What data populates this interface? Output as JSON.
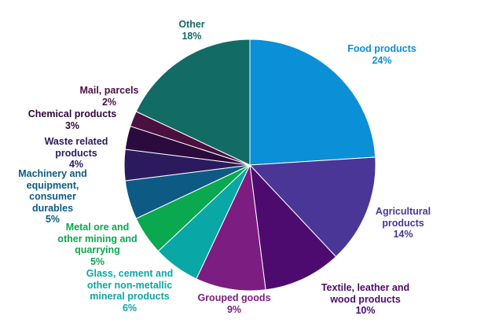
{
  "chart_data": {
    "type": "pie",
    "start": "top",
    "direction": "clockwise",
    "slices": [
      {
        "label": "Food products",
        "display_label": "Food products",
        "value": 24,
        "value_label": "24%",
        "color": "#0b8fd6",
        "label_color": "#0b8fd6"
      },
      {
        "label": "Agricultural products",
        "display_label": "Agricultural\nproducts",
        "value": 14,
        "value_label": "14%",
        "color": "#4a3696",
        "label_color": "#4a3696"
      },
      {
        "label": "Textile, leather and wood products",
        "display_label": "Textile, leather and\nwood products",
        "value": 10,
        "value_label": "10%",
        "color": "#4d0b6f",
        "label_color": "#4d0b6f"
      },
      {
        "label": "Grouped goods",
        "display_label": "Grouped goods",
        "value": 9,
        "value_label": "9%",
        "color": "#7c1d81",
        "label_color": "#7c1d81"
      },
      {
        "label": "Glass, cement and other non-metallic mineral products",
        "display_label": "Glass, cement and\nother non-metallic\nmineral products",
        "value": 6,
        "value_label": "6%",
        "color": "#0aa7a7",
        "label_color": "#0aa7a7"
      },
      {
        "label": "Metal ore and other mining and quarrying",
        "display_label": "Metal ore and\nother mining and\nquarrying",
        "value": 5,
        "value_label": "5%",
        "color": "#0aa84f",
        "label_color": "#0aa84f"
      },
      {
        "label": "Machinery and equipment, consumer durables",
        "display_label": "Machinery and\nequipment,\nconsumer\ndurables",
        "value": 5,
        "value_label": "5%",
        "color": "#0d5a85",
        "label_color": "#0d5a85"
      },
      {
        "label": "Waste related products",
        "display_label": "Waste related\nproducts",
        "value": 4,
        "value_label": "4%",
        "color": "#2b1b5e",
        "label_color": "#2b1b5e"
      },
      {
        "label": "Chemical products",
        "display_label": "Chemical products",
        "value": 3,
        "value_label": "3%",
        "color": "#2b0a3d",
        "label_color": "#2b0a3d"
      },
      {
        "label": "Mail, parcels",
        "display_label": "Mail, parcels",
        "value": 2,
        "value_label": "2%",
        "color": "#4a1040",
        "label_color": "#4a1040"
      },
      {
        "label": "Other",
        "display_label": "Other",
        "value": 18,
        "value_label": "18%",
        "color": "#136b66",
        "label_color": "#136b66"
      }
    ]
  }
}
